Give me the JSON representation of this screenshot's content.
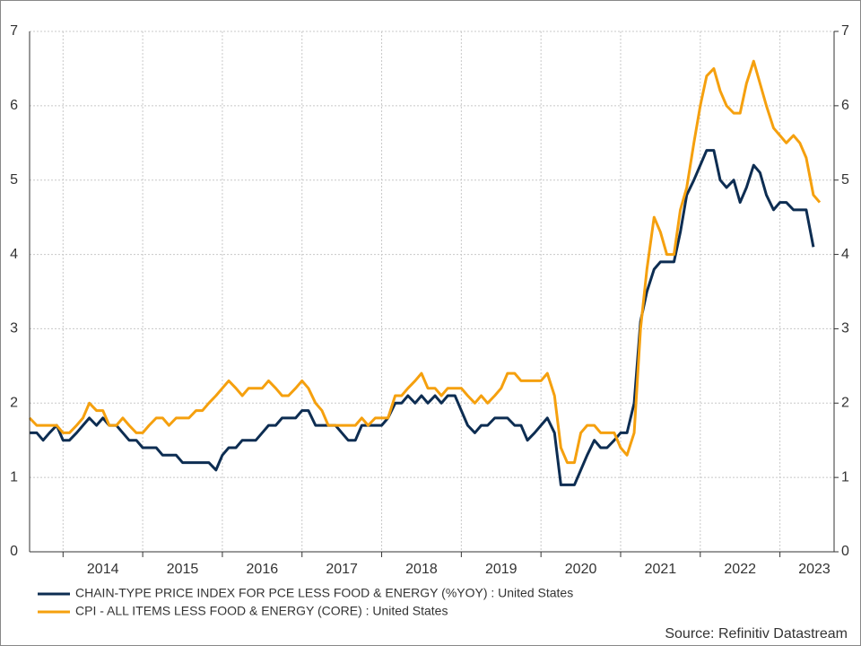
{
  "chart_data": {
    "type": "line",
    "x": [
      2013.58,
      2013.67,
      2013.75,
      2013.83,
      2013.92,
      2014.0,
      2014.08,
      2014.17,
      2014.25,
      2014.33,
      2014.42,
      2014.5,
      2014.58,
      2014.67,
      2014.75,
      2014.83,
      2014.92,
      2015.0,
      2015.08,
      2015.17,
      2015.25,
      2015.33,
      2015.42,
      2015.5,
      2015.58,
      2015.67,
      2015.75,
      2015.83,
      2015.92,
      2016.0,
      2016.08,
      2016.17,
      2016.25,
      2016.33,
      2016.42,
      2016.5,
      2016.58,
      2016.67,
      2016.75,
      2016.83,
      2016.92,
      2017.0,
      2017.08,
      2017.17,
      2017.25,
      2017.33,
      2017.42,
      2017.5,
      2017.58,
      2017.67,
      2017.75,
      2017.83,
      2017.92,
      2018.0,
      2018.08,
      2018.17,
      2018.25,
      2018.33,
      2018.42,
      2018.5,
      2018.58,
      2018.67,
      2018.75,
      2018.83,
      2018.92,
      2019.0,
      2019.08,
      2019.17,
      2019.25,
      2019.33,
      2019.42,
      2019.5,
      2019.58,
      2019.67,
      2019.75,
      2019.83,
      2019.92,
      2020.0,
      2020.08,
      2020.17,
      2020.25,
      2020.33,
      2020.42,
      2020.5,
      2020.58,
      2020.67,
      2020.75,
      2020.83,
      2020.92,
      2021.0,
      2021.08,
      2021.17,
      2021.25,
      2021.33,
      2021.42,
      2021.5,
      2021.58,
      2021.67,
      2021.75,
      2021.83,
      2021.92,
      2022.0,
      2022.08,
      2022.17,
      2022.25,
      2022.33,
      2022.42,
      2022.5,
      2022.58,
      2022.67,
      2022.75,
      2022.83,
      2022.92,
      2023.0,
      2023.08,
      2023.17,
      2023.25,
      2023.33,
      2023.42,
      2023.5
    ],
    "series": [
      {
        "name": "CHAIN-TYPE PRICE INDEX FOR PCE LESS FOOD & ENERGY (%YOY) : United States",
        "color": "#0d2d52",
        "values": [
          1.6,
          1.6,
          1.5,
          1.6,
          1.7,
          1.5,
          1.5,
          1.6,
          1.7,
          1.8,
          1.7,
          1.8,
          1.7,
          1.7,
          1.6,
          1.5,
          1.5,
          1.4,
          1.4,
          1.4,
          1.3,
          1.3,
          1.3,
          1.2,
          1.2,
          1.2,
          1.2,
          1.2,
          1.1,
          1.3,
          1.4,
          1.4,
          1.5,
          1.5,
          1.5,
          1.6,
          1.7,
          1.7,
          1.8,
          1.8,
          1.8,
          1.9,
          1.9,
          1.7,
          1.7,
          1.7,
          1.7,
          1.6,
          1.5,
          1.5,
          1.7,
          1.7,
          1.7,
          1.7,
          1.8,
          2.0,
          2.0,
          2.1,
          2.0,
          2.1,
          2.0,
          2.1,
          2.0,
          2.1,
          2.1,
          1.9,
          1.7,
          1.6,
          1.7,
          1.7,
          1.8,
          1.8,
          1.8,
          1.7,
          1.7,
          1.5,
          1.6,
          1.7,
          1.8,
          1.6,
          0.9,
          0.9,
          0.9,
          1.1,
          1.3,
          1.5,
          1.4,
          1.4,
          1.5,
          1.6,
          1.6,
          2.0,
          3.1,
          3.5,
          3.8,
          3.9,
          3.9,
          3.9,
          4.3,
          4.8,
          5.0,
          5.2,
          5.4,
          5.4,
          5.0,
          4.9,
          5.0,
          4.7,
          4.9,
          5.2,
          5.1,
          4.8,
          4.6,
          4.7,
          4.7,
          4.6,
          4.6,
          4.6,
          4.1,
          null
        ]
      },
      {
        "name": "CPI - ALL ITEMS LESS FOOD & ENERGY (CORE) : United States",
        "color": "#f5a00e",
        "values": [
          1.8,
          1.7,
          1.7,
          1.7,
          1.7,
          1.6,
          1.6,
          1.7,
          1.8,
          2.0,
          1.9,
          1.9,
          1.7,
          1.7,
          1.8,
          1.7,
          1.6,
          1.6,
          1.7,
          1.8,
          1.8,
          1.7,
          1.8,
          1.8,
          1.8,
          1.9,
          1.9,
          2.0,
          2.1,
          2.2,
          2.3,
          2.2,
          2.1,
          2.2,
          2.2,
          2.2,
          2.3,
          2.2,
          2.1,
          2.1,
          2.2,
          2.3,
          2.2,
          2.0,
          1.9,
          1.7,
          1.7,
          1.7,
          1.7,
          1.7,
          1.8,
          1.7,
          1.8,
          1.8,
          1.8,
          2.1,
          2.1,
          2.2,
          2.3,
          2.4,
          2.2,
          2.2,
          2.1,
          2.2,
          2.2,
          2.2,
          2.1,
          2.0,
          2.1,
          2.0,
          2.1,
          2.2,
          2.4,
          2.4,
          2.3,
          2.3,
          2.3,
          2.3,
          2.4,
          2.1,
          1.4,
          1.2,
          1.2,
          1.6,
          1.7,
          1.7,
          1.6,
          1.6,
          1.6,
          1.4,
          1.3,
          1.6,
          3.0,
          3.8,
          4.5,
          4.3,
          4.0,
          4.0,
          4.6,
          4.9,
          5.5,
          6.0,
          6.4,
          6.5,
          6.2,
          6.0,
          5.9,
          5.9,
          6.3,
          6.6,
          6.3,
          6.0,
          5.7,
          5.6,
          5.5,
          5.6,
          5.5,
          5.3,
          4.8,
          4.7
        ]
      }
    ],
    "xlim": [
      2013.58,
      2023.68
    ],
    "xticks": [
      2014,
      2015,
      2016,
      2017,
      2018,
      2019,
      2020,
      2021,
      2022,
      2023
    ],
    "ylim": [
      0,
      7
    ],
    "yticks": [
      0,
      1,
      2,
      3,
      4,
      5,
      6,
      7
    ],
    "y2lim": [
      0,
      7
    ],
    "y2ticks": [
      0,
      1,
      2,
      3,
      4,
      5,
      6,
      7
    ],
    "grid": true,
    "source": "Source: Refinitiv Datastream"
  }
}
